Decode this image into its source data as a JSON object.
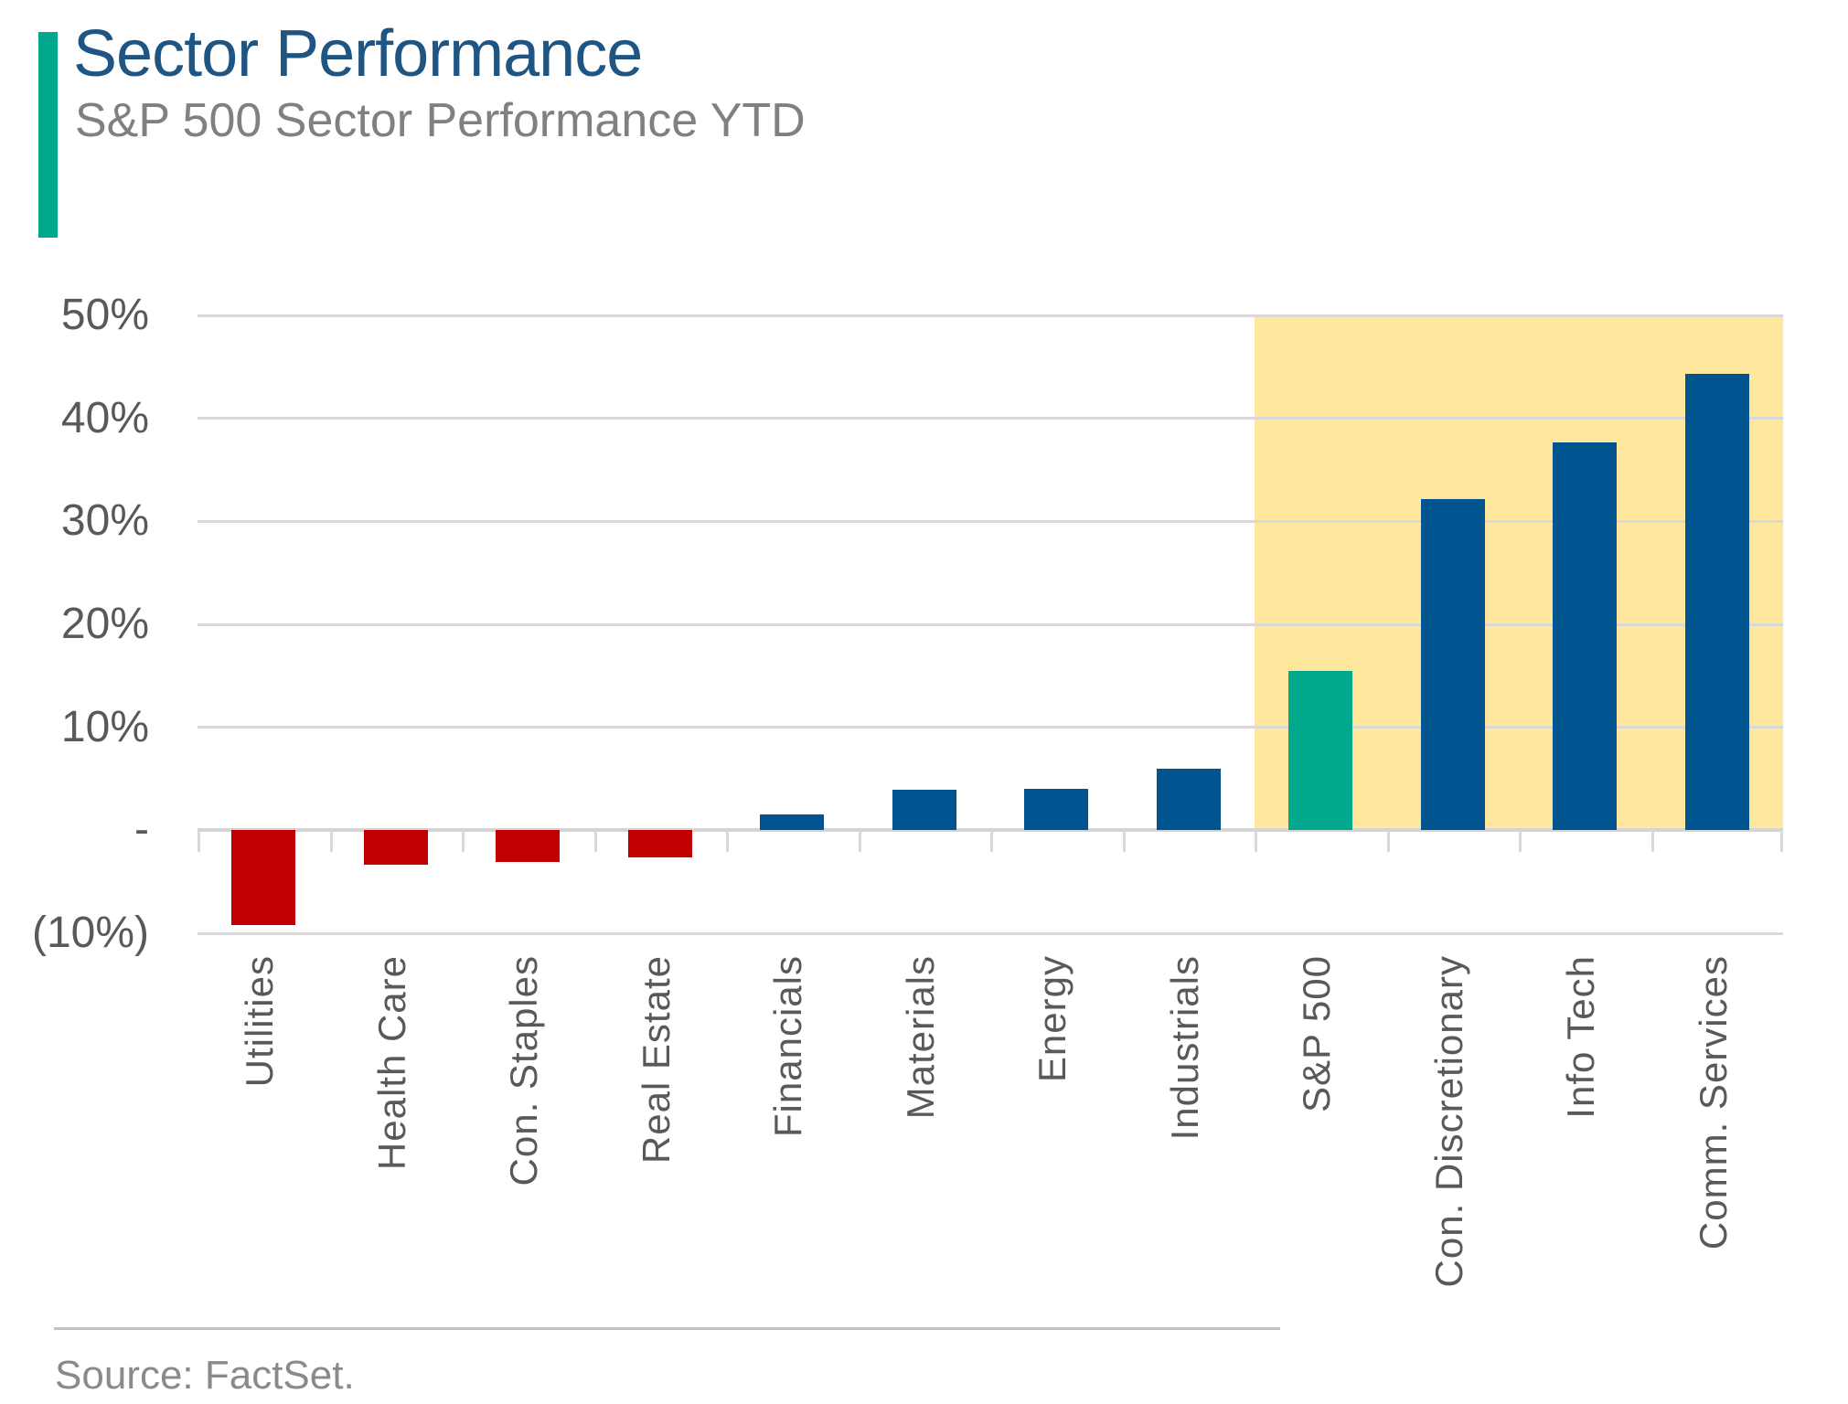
{
  "header": {
    "title": "Sector Performance",
    "subtitle": "S&P 500 Sector Performance YTD",
    "title_color": "#1F5582",
    "accent_color": "#00A98C"
  },
  "source": {
    "label": "Source: FactSet."
  },
  "chart_data": {
    "type": "bar",
    "title": "S&P 500 Sector Performance YTD",
    "xlabel": "",
    "ylabel": "",
    "categories": [
      "Utilities",
      "Health Care",
      "Con. Staples",
      "Real Estate",
      "Financials",
      "Materials",
      "Energy",
      "Industrials",
      "S&P 500",
      "Con. Discretionary",
      "Info Tech",
      "Comm. Services"
    ],
    "values": [
      -9.2,
      -3.3,
      -3.1,
      -2.6,
      1.5,
      3.9,
      4.0,
      6.0,
      15.5,
      32.2,
      37.7,
      44.3
    ],
    "value_unit": "%",
    "ylim": [
      -10,
      50
    ],
    "yticks": [
      {
        "value": 50,
        "label": "50%"
      },
      {
        "value": 40,
        "label": "40%"
      },
      {
        "value": 30,
        "label": "30%"
      },
      {
        "value": 20,
        "label": "20%"
      },
      {
        "value": 10,
        "label": "10%"
      },
      {
        "value": 0,
        "label": "-"
      },
      {
        "value": -10,
        "label": "(10%)"
      }
    ],
    "grid": true,
    "legend": false,
    "bar_colors": {
      "positive": "#005590",
      "negative": "#C00000",
      "benchmark": "#00A98C"
    },
    "benchmark_category": "S&P 500",
    "highlight_band": {
      "categories": [
        "S&P 500",
        "Con. Discretionary",
        "Info Tech",
        "Comm. Services"
      ],
      "color": "#FFE79E",
      "value_range": [
        0,
        50
      ]
    },
    "gridline_color": "#D9D9D9"
  }
}
